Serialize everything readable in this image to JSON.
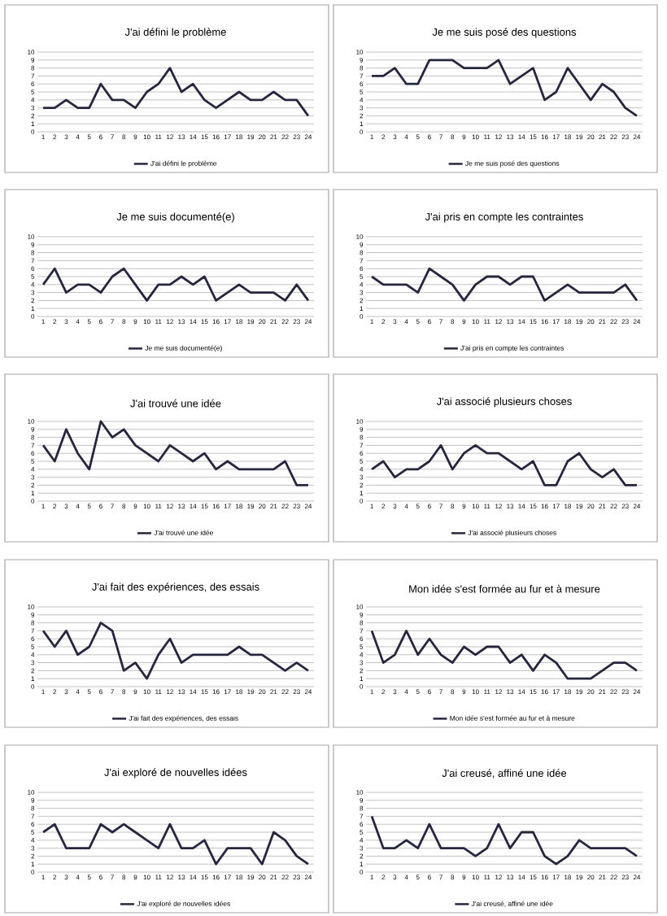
{
  "chart_data": [
    {
      "type": "line",
      "title": "J'ai défini le problème",
      "categories": [
        "1",
        "2",
        "3",
        "4",
        "5",
        "6",
        "7",
        "8",
        "9",
        "10",
        "11",
        "12",
        "13",
        "14",
        "15",
        "16",
        "17",
        "18",
        "19",
        "20",
        "21",
        "22",
        "23",
        "24"
      ],
      "series": [
        {
          "name": "J'ai défini le problème",
          "color": "#262640",
          "values": [
            3,
            3,
            4,
            3,
            3,
            6,
            4,
            4,
            3,
            5,
            6,
            8,
            5,
            6,
            4,
            3,
            4,
            5,
            4,
            4,
            5,
            4,
            4,
            2
          ]
        }
      ],
      "ylim": [
        0,
        10
      ],
      "yticks": [
        0,
        1,
        2,
        3,
        4,
        5,
        6,
        7,
        8,
        9,
        10
      ],
      "grid": "y",
      "legend": "bottom"
    },
    {
      "type": "line",
      "title": "Je me suis posé des questions",
      "categories": [
        "1",
        "2",
        "3",
        "4",
        "5",
        "6",
        "7",
        "8",
        "9",
        "10",
        "11",
        "12",
        "13",
        "14",
        "15",
        "16",
        "17",
        "18",
        "19",
        "20",
        "21",
        "22",
        "23",
        "24"
      ],
      "series": [
        {
          "name": "Je me suis posé des questions",
          "color": "#262640",
          "values": [
            7,
            7,
            8,
            6,
            6,
            9,
            9,
            9,
            8,
            8,
            8,
            9,
            6,
            7,
            8,
            4,
            5,
            8,
            6,
            4,
            6,
            5,
            3,
            2
          ]
        }
      ],
      "ylim": [
        0,
        10
      ],
      "yticks": [
        0,
        1,
        2,
        3,
        4,
        5,
        6,
        7,
        8,
        9,
        10
      ],
      "grid": "y",
      "legend": "bottom"
    },
    {
      "type": "line",
      "title": "Je me suis documenté(e)",
      "categories": [
        "1",
        "2",
        "3",
        "4",
        "5",
        "6",
        "7",
        "8",
        "9",
        "10",
        "11",
        "12",
        "13",
        "14",
        "15",
        "16",
        "17",
        "18",
        "19",
        "20",
        "21",
        "22",
        "23",
        "24"
      ],
      "series": [
        {
          "name": "Je me suis documenté(e)",
          "color": "#262640",
          "values": [
            4,
            6,
            3,
            4,
            4,
            3,
            5,
            6,
            4,
            2,
            4,
            4,
            5,
            4,
            5,
            2,
            3,
            4,
            3,
            3,
            3,
            2,
            4,
            2
          ]
        }
      ],
      "ylim": [
        0,
        10
      ],
      "yticks": [
        0,
        1,
        2,
        3,
        4,
        5,
        6,
        7,
        8,
        9,
        10
      ],
      "grid": "y",
      "legend": "bottom"
    },
    {
      "type": "line",
      "title": "J'ai pris en compte les contraintes",
      "categories": [
        "1",
        "2",
        "3",
        "4",
        "5",
        "6",
        "7",
        "8",
        "9",
        "10",
        "11",
        "12",
        "13",
        "14",
        "15",
        "16",
        "17",
        "18",
        "19",
        "20",
        "21",
        "22",
        "23",
        "24"
      ],
      "series": [
        {
          "name": "J'ai pris en compte les contraintes",
          "color": "#262640",
          "values": [
            5,
            4,
            4,
            4,
            3,
            6,
            5,
            4,
            2,
            4,
            5,
            5,
            4,
            5,
            5,
            2,
            3,
            4,
            3,
            3,
            3,
            3,
            4,
            2
          ]
        }
      ],
      "ylim": [
        0,
        10
      ],
      "yticks": [
        0,
        1,
        2,
        3,
        4,
        5,
        6,
        7,
        8,
        9,
        10
      ],
      "grid": "y",
      "legend": "bottom"
    },
    {
      "type": "line",
      "title": "J'ai trouvé une idée",
      "categories": [
        "1",
        "2",
        "3",
        "4",
        "5",
        "6",
        "7",
        "8",
        "9",
        "10",
        "11",
        "12",
        "13",
        "14",
        "15",
        "16",
        "17",
        "18",
        "19",
        "20",
        "21",
        "22",
        "23",
        "24"
      ],
      "series": [
        {
          "name": "J'ai trouvé une idée",
          "color": "#262640",
          "values": [
            7,
            5,
            9,
            6,
            4,
            10,
            8,
            9,
            7,
            6,
            5,
            7,
            6,
            5,
            6,
            4,
            5,
            4,
            4,
            4,
            4,
            5,
            2,
            2
          ]
        }
      ],
      "ylim": [
        0,
        10
      ],
      "yticks": [
        0,
        1,
        2,
        3,
        4,
        5,
        6,
        7,
        8,
        9,
        10
      ],
      "grid": "y",
      "legend": "bottom"
    },
    {
      "type": "line",
      "title": "J'ai associé plusieurs choses",
      "categories": [
        "1",
        "2",
        "3",
        "4",
        "5",
        "6",
        "7",
        "8",
        "9",
        "10",
        "11",
        "12",
        "13",
        "14",
        "15",
        "16",
        "17",
        "18",
        "19",
        "20",
        "21",
        "22",
        "23",
        "24"
      ],
      "series": [
        {
          "name": "J'ai associé plusieurs choses",
          "color": "#262640",
          "values": [
            4,
            5,
            3,
            4,
            4,
            5,
            7,
            4,
            6,
            7,
            6,
            6,
            5,
            4,
            5,
            2,
            2,
            5,
            6,
            4,
            3,
            4,
            2,
            2
          ]
        }
      ],
      "ylim": [
        0,
        10
      ],
      "yticks": [
        0,
        1,
        2,
        3,
        4,
        5,
        6,
        7,
        8,
        9,
        10
      ],
      "grid": "y",
      "legend": "bottom"
    },
    {
      "type": "line",
      "title": "J'ai fait des expériences, des essais",
      "categories": [
        "1",
        "2",
        "3",
        "4",
        "5",
        "6",
        "7",
        "8",
        "9",
        "10",
        "11",
        "12",
        "13",
        "14",
        "15",
        "16",
        "17",
        "18",
        "19",
        "20",
        "21",
        "22",
        "23",
        "24"
      ],
      "series": [
        {
          "name": "J'ai fait des expériences, des essais",
          "color": "#262640",
          "values": [
            7,
            5,
            7,
            4,
            5,
            8,
            7,
            2,
            3,
            1,
            4,
            6,
            3,
            4,
            4,
            4,
            4,
            5,
            4,
            4,
            3,
            2,
            3,
            2
          ]
        }
      ],
      "ylim": [
        0,
        10
      ],
      "yticks": [
        0,
        1,
        2,
        3,
        4,
        5,
        6,
        7,
        8,
        9,
        10
      ],
      "grid": "y",
      "legend": "bottom"
    },
    {
      "type": "line",
      "title": "Mon idée s'est formée au fur et à mesure",
      "categories": [
        "1",
        "2",
        "3",
        "4",
        "5",
        "6",
        "7",
        "8",
        "9",
        "10",
        "11",
        "12",
        "13",
        "14",
        "15",
        "16",
        "17",
        "18",
        "19",
        "20",
        "21",
        "22",
        "23",
        "24"
      ],
      "series": [
        {
          "name": "Mon idée s'est formée au fur et à mesure",
          "color": "#262640",
          "values": [
            7,
            3,
            4,
            7,
            4,
            6,
            4,
            3,
            5,
            4,
            5,
            5,
            3,
            4,
            2,
            4,
            3,
            1,
            1,
            1,
            2,
            3,
            3,
            2
          ]
        }
      ],
      "ylim": [
        0,
        10
      ],
      "yticks": [
        0,
        1,
        2,
        3,
        4,
        5,
        6,
        7,
        8,
        9,
        10
      ],
      "grid": "y",
      "legend": "bottom"
    },
    {
      "type": "line",
      "title": "J'ai exploré de nouvelles idées",
      "categories": [
        "1",
        "2",
        "3",
        "4",
        "5",
        "6",
        "7",
        "8",
        "9",
        "10",
        "11",
        "12",
        "13",
        "14",
        "15",
        "16",
        "17",
        "18",
        "19",
        "20",
        "21",
        "22",
        "23",
        "24"
      ],
      "series": [
        {
          "name": "J'ai exploré de nouvelles idées",
          "color": "#262640",
          "values": [
            5,
            6,
            3,
            3,
            3,
            6,
            5,
            6,
            5,
            4,
            3,
            6,
            3,
            3,
            4,
            1,
            3,
            3,
            3,
            1,
            5,
            4,
            2,
            1
          ]
        }
      ],
      "ylim": [
        0,
        10
      ],
      "yticks": [
        0,
        1,
        2,
        3,
        4,
        5,
        6,
        7,
        8,
        9,
        10
      ],
      "grid": "y",
      "legend": "bottom"
    },
    {
      "type": "line",
      "title": "J'ai creusé, affiné une idée",
      "categories": [
        "1",
        "2",
        "3",
        "4",
        "5",
        "6",
        "7",
        "8",
        "9",
        "10",
        "11",
        "12",
        "13",
        "14",
        "15",
        "16",
        "17",
        "18",
        "19",
        "20",
        "21",
        "22",
        "23",
        "24"
      ],
      "series": [
        {
          "name": "J'ai creusé, affiné une idée",
          "color": "#262640",
          "values": [
            7,
            3,
            3,
            4,
            3,
            6,
            3,
            3,
            3,
            2,
            3,
            6,
            3,
            5,
            5,
            2,
            1,
            2,
            4,
            3,
            3,
            3,
            3,
            2
          ]
        }
      ],
      "ylim": [
        0,
        10
      ],
      "yticks": [
        0,
        1,
        2,
        3,
        4,
        5,
        6,
        7,
        8,
        9,
        10
      ],
      "grid": "y",
      "legend": "bottom"
    }
  ]
}
